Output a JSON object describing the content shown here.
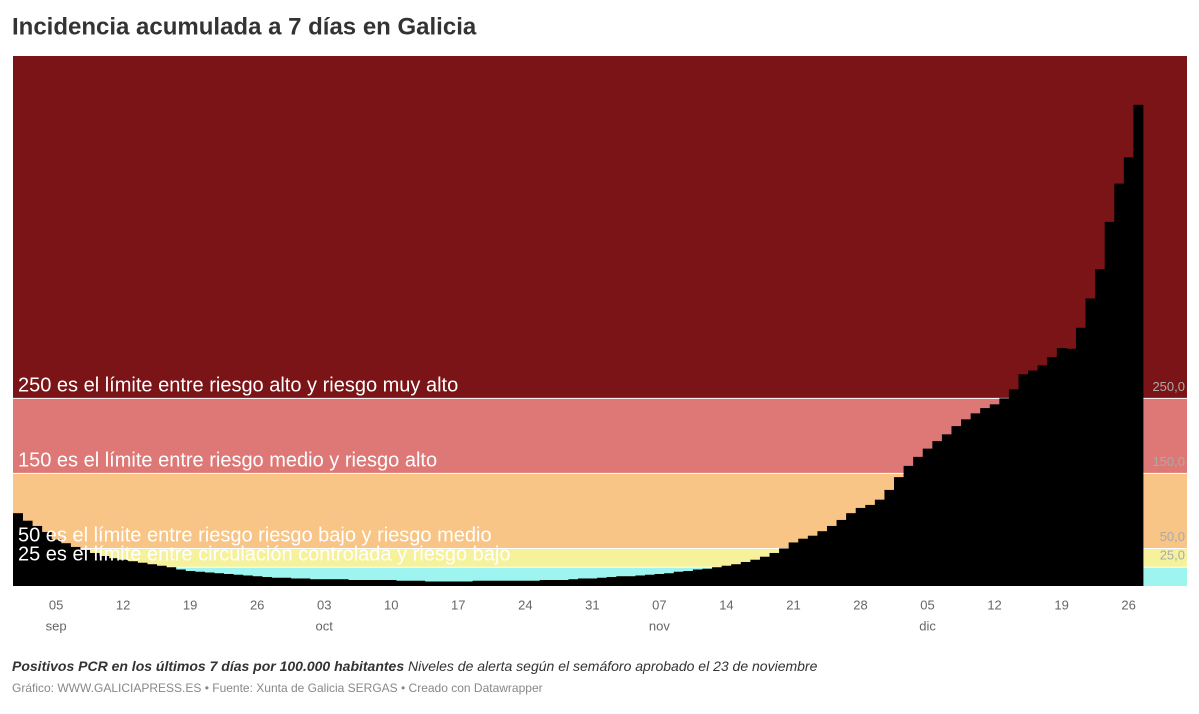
{
  "chart_data": {
    "type": "bar",
    "title": "Incidencia acumulada a 7 días en Galicia",
    "note_bold": "Positivos PCR en los últimos 7 días por 100.000 habitantes",
    "note": "Niveles de alerta según el semáforo aprobado el 23 de noviembre",
    "footer": "Gráfico: WWW.GALICIAPRESS.ES • Fuente: Xunta de Galicia SERGAS • Creado con Datawrapper",
    "x": [
      "09-01",
      "09-02",
      "09-03",
      "09-04",
      "09-05",
      "09-06",
      "09-07",
      "09-08",
      "09-09",
      "09-10",
      "09-11",
      "09-12",
      "09-13",
      "09-14",
      "09-15",
      "09-16",
      "09-17",
      "09-18",
      "09-19",
      "09-20",
      "09-21",
      "09-22",
      "09-23",
      "09-24",
      "09-25",
      "09-26",
      "09-27",
      "09-28",
      "09-29",
      "09-30",
      "10-01",
      "10-02",
      "10-03",
      "10-04",
      "10-05",
      "10-06",
      "10-07",
      "10-08",
      "10-09",
      "10-10",
      "10-11",
      "10-12",
      "10-13",
      "10-14",
      "10-15",
      "10-16",
      "10-17",
      "10-18",
      "10-19",
      "10-20",
      "10-21",
      "10-22",
      "10-23",
      "10-24",
      "10-25",
      "10-26",
      "10-27",
      "10-28",
      "10-29",
      "10-30",
      "10-31",
      "11-01",
      "11-02",
      "11-03",
      "11-04",
      "11-05",
      "11-06",
      "11-07",
      "11-08",
      "11-09",
      "11-10",
      "11-11",
      "11-12",
      "11-13",
      "11-14",
      "11-15",
      "11-16",
      "11-17",
      "11-18",
      "11-19",
      "11-20",
      "11-21",
      "11-22",
      "11-23",
      "11-24",
      "11-25",
      "11-26",
      "11-27",
      "11-28",
      "11-29",
      "11-30",
      "12-01",
      "12-02",
      "12-03",
      "12-04",
      "12-05",
      "12-06",
      "12-07",
      "12-08",
      "12-09",
      "12-10",
      "12-11",
      "12-12",
      "12-13",
      "12-14",
      "12-15",
      "12-16",
      "12-17",
      "12-18",
      "12-19",
      "12-20",
      "12-21",
      "12-22",
      "12-23",
      "12-24",
      "12-25",
      "12-26",
      "12-27"
    ],
    "values": [
      97,
      87,
      80,
      72,
      62,
      57,
      52,
      48,
      44,
      40,
      37,
      35,
      33,
      31,
      29,
      27,
      25,
      22,
      20,
      19,
      18,
      17,
      16,
      15,
      14,
      13,
      12,
      11,
      11,
      10,
      10,
      9,
      9,
      9,
      9,
      8,
      8,
      8,
      8,
      8,
      7,
      7,
      7,
      6,
      6,
      6,
      6,
      6,
      7,
      7,
      7,
      7,
      7,
      7,
      7,
      8,
      8,
      8,
      9,
      10,
      10,
      11,
      12,
      13,
      13,
      14,
      15,
      16,
      17,
      19,
      20,
      22,
      23,
      25,
      27,
      29,
      32,
      35,
      39,
      44,
      50,
      58,
      63,
      67,
      73,
      80,
      88,
      97,
      104,
      108,
      115,
      128,
      145,
      160,
      172,
      183,
      193,
      202,
      213,
      222,
      230,
      237,
      242,
      250,
      262,
      282,
      287,
      294,
      305,
      317,
      316,
      344,
      383,
      422,
      485,
      536,
      571,
      641
    ],
    "color": "#000000",
    "ylim": [
      0,
      706
    ],
    "yticks": [
      {
        "value": 25,
        "label": "25,0"
      },
      {
        "value": 50,
        "label": "50,0"
      },
      {
        "value": 150,
        "label": "150,0"
      },
      {
        "value": 250,
        "label": "250,0"
      }
    ],
    "xticks": [
      {
        "value": "09-05",
        "label": "05"
      },
      {
        "value": "09-12",
        "label": "12"
      },
      {
        "value": "09-19",
        "label": "19"
      },
      {
        "value": "09-26",
        "label": "26"
      },
      {
        "value": "10-03",
        "label": "03"
      },
      {
        "value": "10-10",
        "label": "10"
      },
      {
        "value": "10-17",
        "label": "17"
      },
      {
        "value": "10-24",
        "label": "24"
      },
      {
        "value": "10-31",
        "label": "31"
      },
      {
        "value": "11-07",
        "label": "07"
      },
      {
        "value": "11-14",
        "label": "14"
      },
      {
        "value": "11-21",
        "label": "21"
      },
      {
        "value": "11-28",
        "label": "28"
      },
      {
        "value": "12-05",
        "label": "05"
      },
      {
        "value": "12-12",
        "label": "12"
      },
      {
        "value": "12-19",
        "label": "19"
      },
      {
        "value": "12-26",
        "label": "26"
      }
    ],
    "months": [
      {
        "value": "09-05",
        "label": "sep"
      },
      {
        "value": "10-03",
        "label": "oct"
      },
      {
        "value": "11-07",
        "label": "nov"
      },
      {
        "value": "12-05",
        "label": "dic"
      }
    ],
    "bands": [
      {
        "from": 0,
        "to": 25,
        "color": "#9ef4ee"
      },
      {
        "from": 25,
        "to": 50,
        "color": "#f6f29b"
      },
      {
        "from": 50,
        "to": 150,
        "color": "#f8c586"
      },
      {
        "from": 150,
        "to": 250,
        "color": "#dd7876"
      },
      {
        "from": 250,
        "color": "#7b1416"
      }
    ],
    "thresholds": [
      {
        "value": 250,
        "label": "250 es el límite entre riesgo alto y riesgo muy alto"
      },
      {
        "value": 150,
        "label": "150 es el límite entre riesgo medio y riesgo alto"
      },
      {
        "value": 50,
        "label": "50 es el límite entre riesgo riesgo bajo y riesgo medio"
      },
      {
        "value": 25,
        "label": "25 es el límite entre circulación controlada y riesgo bajo"
      }
    ]
  }
}
